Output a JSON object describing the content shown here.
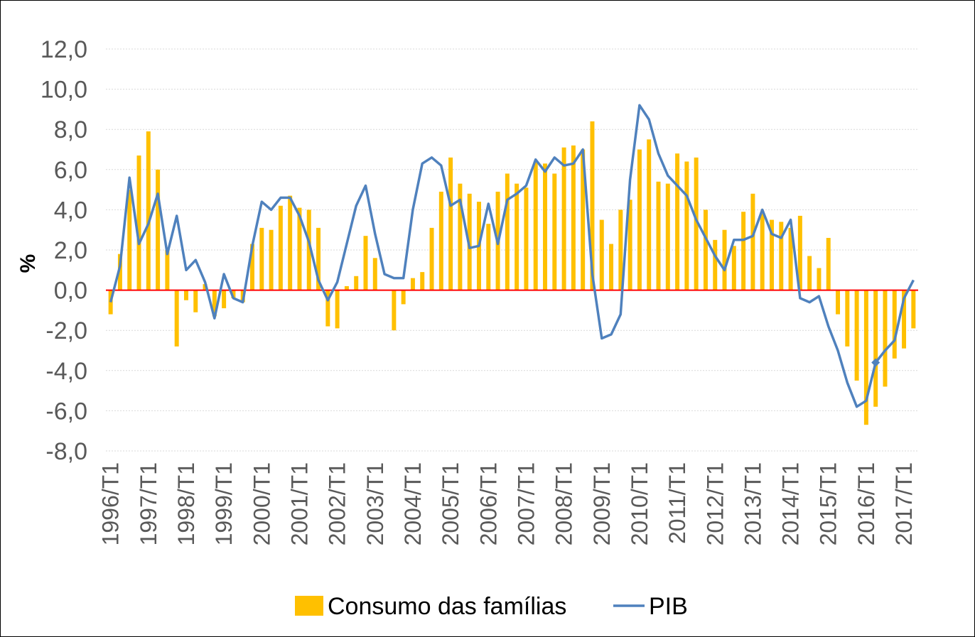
{
  "chart_data": {
    "type": "bar+line",
    "ylabel": "%",
    "ylim": [
      -8,
      12
    ],
    "yticks": [
      12,
      10,
      8,
      6,
      4,
      2,
      0,
      -2,
      -4,
      -6,
      -8
    ],
    "ytick_labels": [
      "12,0",
      "10,0",
      "8,0",
      "6,0",
      "4,0",
      "2,0",
      "0,0",
      "-2,0",
      "-4,0",
      "-6,0",
      "-8,0"
    ],
    "x_tick_labels": [
      "1996/T1",
      "1997/T1",
      "1998/T1",
      "1999/T1",
      "2000/T1",
      "2001/T1",
      "2002/T1",
      "2003/T1",
      "2004/T1",
      "2005/T1",
      "2006/T1",
      "2007/T1",
      "2008/T1",
      "2009/T1",
      "2010/T1",
      "2011/T1",
      "2012/T1",
      "2013/T1",
      "2014/T1",
      "2015/T1",
      "2016/T1",
      "2017/T1"
    ],
    "quarters_start": "1996/T1",
    "series": [
      {
        "name": "Consumo das famílias",
        "type": "bar",
        "color": "#FFC000",
        "values": [
          -1.2,
          1.8,
          5.0,
          6.7,
          7.9,
          6.0,
          2.0,
          -2.8,
          -0.5,
          -1.1,
          0.3,
          -1.3,
          -0.9,
          -0.4,
          -0.6,
          2.3,
          3.1,
          3.0,
          4.2,
          4.7,
          4.1,
          4.0,
          3.1,
          -1.8,
          -1.9,
          0.2,
          0.7,
          2.7,
          1.6,
          0.0,
          -2.0,
          -0.7,
          0.6,
          0.9,
          3.1,
          4.9,
          6.6,
          5.3,
          4.8,
          4.4,
          3.3,
          4.9,
          5.8,
          5.3,
          5.1,
          6.4,
          6.3,
          5.8,
          7.1,
          7.2,
          7.0,
          8.4,
          3.5,
          2.3,
          4.0,
          4.5,
          7.0,
          7.5,
          5.4,
          5.3,
          6.8,
          6.4,
          6.6,
          4.0,
          2.5,
          3.0,
          2.2,
          3.9,
          4.8,
          3.8,
          3.5,
          3.4,
          3.1,
          3.7,
          1.7,
          1.1,
          2.6,
          -1.2,
          -2.8,
          -4.5,
          -6.7,
          -5.8,
          -4.8,
          -3.4,
          -2.9,
          -1.9
        ]
      },
      {
        "name": "PIB",
        "type": "line",
        "color": "#4F81BD",
        "values": [
          -0.6,
          1.2,
          5.6,
          2.3,
          3.3,
          4.8,
          1.8,
          3.7,
          1.0,
          1.5,
          0.4,
          -1.4,
          0.8,
          -0.4,
          -0.6,
          2.2,
          4.4,
          4.0,
          4.6,
          4.6,
          3.7,
          2.4,
          0.5,
          -0.5,
          0.4,
          2.3,
          4.2,
          5.2,
          2.8,
          0.8,
          0.6,
          0.6,
          4.0,
          6.3,
          6.6,
          6.2,
          4.2,
          4.5,
          2.1,
          2.2,
          4.3,
          2.3,
          4.5,
          4.8,
          5.2,
          6.5,
          5.9,
          6.6,
          6.2,
          6.3,
          7.0,
          0.8,
          -2.4,
          -2.2,
          -1.2,
          5.5,
          9.2,
          8.5,
          6.8,
          5.7,
          5.2,
          4.7,
          3.5,
          2.6,
          1.7,
          1.0,
          2.5,
          2.5,
          2.7,
          4.0,
          2.8,
          2.6,
          3.5,
          -0.4,
          -0.6,
          -0.3,
          -1.8,
          -3.0,
          -4.6,
          -5.8,
          -5.5,
          -3.6,
          -3.0,
          -2.5,
          -0.4,
          0.5
        ]
      }
    ],
    "zero_line_color": "#FF0000",
    "legend": [
      "Consumo das famílias",
      "PIB"
    ],
    "legend_position": "bottom"
  }
}
